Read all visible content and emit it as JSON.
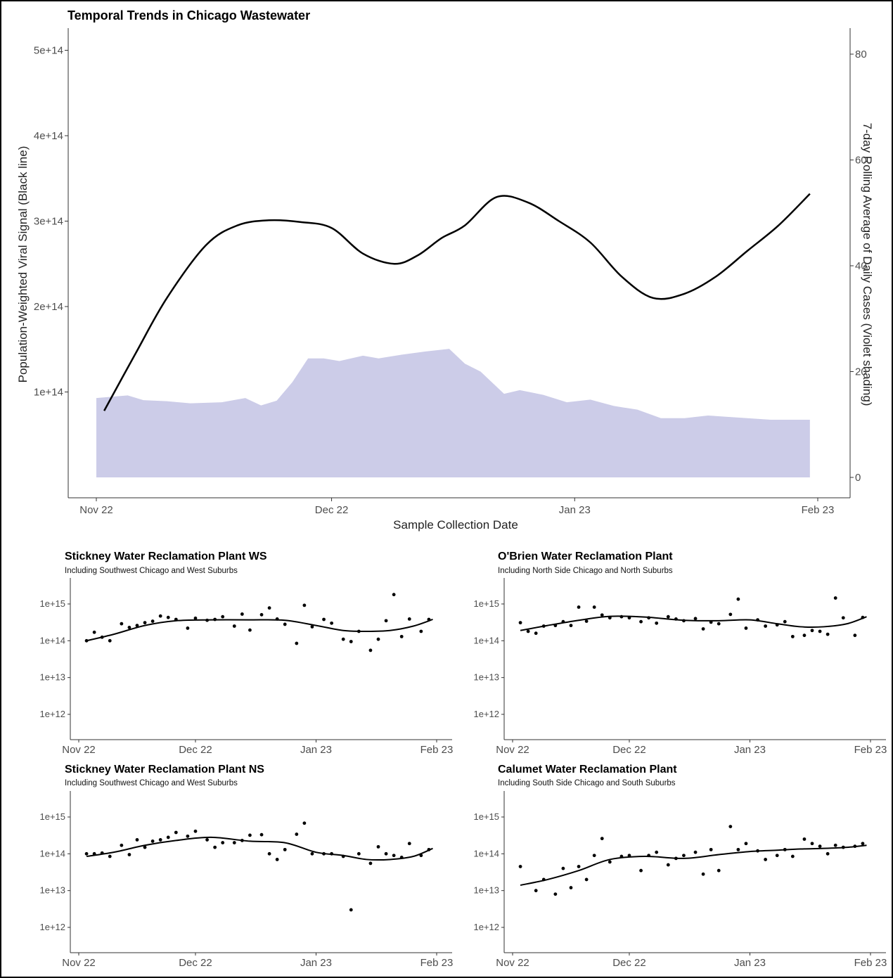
{
  "chart_data": [
    {
      "type": "line+area",
      "title": "Temporal Trends in Chicago Wastewater",
      "xlabel": "Sample Collection Date",
      "ylabel": "Population-Weighted Viral Signal (Black line)",
      "ylabel_right": "7-day Rolling Average of Daily Cases (Violet shading)",
      "x_ticks": [
        "Nov 22",
        "Dec 22",
        "Jan 23",
        "Feb 23"
      ],
      "y_ticks": [
        "1e+14",
        "2e+14",
        "3e+14",
        "4e+14",
        "5e+14"
      ],
      "y_right_ticks": [
        "0",
        "20",
        "40",
        "60",
        "80"
      ],
      "ylim": [
        0,
        510000000000000.0
      ],
      "ylim_right": [
        0,
        81
      ],
      "line_color": "#000000",
      "area_color": "#cccce8",
      "series": [
        {
          "type": "line",
          "x": [
            "2022-11-02",
            "2022-11-06",
            "2022-11-10",
            "2022-11-15",
            "2022-11-19",
            "2022-11-23",
            "2022-11-27",
            "2022-12-01",
            "2022-12-05",
            "2022-12-09",
            "2022-12-12",
            "2022-12-15",
            "2022-12-18",
            "2022-12-22",
            "2022-12-26",
            "2022-12-30",
            "2023-01-03",
            "2023-01-07",
            "2023-01-11",
            "2023-01-15",
            "2023-01-19",
            "2023-01-23",
            "2023-01-27",
            "2023-01-31"
          ],
          "values": [
            78000000000000.0,
            145000000000000.0,
            210000000000000.0,
            272000000000000.0,
            295000000000000.0,
            301000000000000.0,
            299000000000000.0,
            292000000000000.0,
            262000000000000.0,
            250000000000000.0,
            260000000000000.0,
            280000000000000.0,
            295000000000000.0,
            328000000000000.0,
            322000000000000.0,
            300000000000000.0,
            275000000000000.0,
            235000000000000.0,
            210000000000000.0,
            215000000000000.0,
            235000000000000.0,
            265000000000000.0,
            295000000000000.0,
            332000000000000.0
          ]
        },
        {
          "type": "area",
          "x": [
            "2022-11-01",
            "2022-11-05",
            "2022-11-07",
            "2022-11-10",
            "2022-11-13",
            "2022-11-17",
            "2022-11-20",
            "2022-11-22",
            "2022-11-24",
            "2022-11-26",
            "2022-11-28",
            "2022-11-30",
            "2022-12-02",
            "2022-12-05",
            "2022-12-07",
            "2022-12-10",
            "2022-12-13",
            "2022-12-16",
            "2022-12-18",
            "2022-12-20",
            "2022-12-23",
            "2022-12-25",
            "2022-12-28",
            "2022-12-31",
            "2023-01-03",
            "2023-01-06",
            "2023-01-09",
            "2023-01-12",
            "2023-01-15",
            "2023-01-18",
            "2023-01-22",
            "2023-01-26",
            "2023-01-31"
          ],
          "values": [
            15,
            15.5,
            14.6,
            14.4,
            14,
            14.2,
            15,
            13.6,
            14.5,
            18,
            22.5,
            22.5,
            22,
            23,
            22.5,
            23.2,
            23.8,
            24.3,
            21.5,
            20,
            15.8,
            16.5,
            15.6,
            14.2,
            14.7,
            13.5,
            12.8,
            11.2,
            11.2,
            11.7,
            11.3,
            10.9,
            10.9
          ]
        }
      ]
    },
    {
      "type": "scatter+line",
      "title": "Stickney Water Reclamation Plant WS",
      "subtitle": "Including Southwest Chicago and West Suburbs",
      "x_ticks": [
        "Nov 22",
        "Dec 22",
        "Jan 23",
        "Feb 23"
      ],
      "y_ticks": [
        "1e+12",
        "1e+13",
        "1e+14",
        "1e+15"
      ],
      "yscale": "log",
      "points": {
        "x": [
          "2022-11-03",
          "2022-11-05",
          "2022-11-07",
          "2022-11-09",
          "2022-11-12",
          "2022-11-14",
          "2022-11-16",
          "2022-11-18",
          "2022-11-20",
          "2022-11-22",
          "2022-11-24",
          "2022-11-26",
          "2022-11-29",
          "2022-12-01",
          "2022-12-04",
          "2022-12-06",
          "2022-12-08",
          "2022-12-11",
          "2022-12-13",
          "2022-12-15",
          "2022-12-18",
          "2022-12-20",
          "2022-12-22",
          "2022-12-24",
          "2022-12-27",
          "2022-12-29",
          "2022-12-31",
          "2023-01-03",
          "2023-01-05",
          "2023-01-08",
          "2023-01-10",
          "2023-01-12",
          "2023-01-15",
          "2023-01-17",
          "2023-01-19",
          "2023-01-21",
          "2023-01-23",
          "2023-01-25",
          "2023-01-28",
          "2023-01-30"
        ],
        "values": [
          100000000000000.0,
          170000000000000.0,
          125000000000000.0,
          100000000000000.0,
          290000000000000.0,
          230000000000000.0,
          260000000000000.0,
          310000000000000.0,
          340000000000000.0,
          470000000000000.0,
          430000000000000.0,
          380000000000000.0,
          220000000000000.0,
          410000000000000.0,
          360000000000000.0,
          380000000000000.0,
          450000000000000.0,
          250000000000000.0,
          530000000000000.0,
          195000000000000.0,
          510000000000000.0,
          780000000000000.0,
          390000000000000.0,
          280000000000000.0,
          85000000000000.0,
          920000000000000.0,
          240000000000000.0,
          380000000000000.0,
          300000000000000.0,
          110000000000000.0,
          95000000000000.0,
          180000000000000.0,
          55000000000000.0,
          110000000000000.0,
          350000000000000.0,
          1800000000000000.0,
          130000000000000.0,
          390000000000000.0,
          180000000000000.0,
          380000000000000.0
        ]
      },
      "smooth": {
        "x": [
          "2022-11-03",
          "2022-11-10",
          "2022-11-18",
          "2022-11-26",
          "2022-12-05",
          "2022-12-15",
          "2022-12-24",
          "2023-01-01",
          "2023-01-08",
          "2023-01-14",
          "2023-01-20",
          "2023-01-26",
          "2023-01-31"
        ],
        "values": [
          100000000000000.0,
          150000000000000.0,
          260000000000000.0,
          350000000000000.0,
          370000000000000.0,
          370000000000000.0,
          360000000000000.0,
          260000000000000.0,
          190000000000000.0,
          180000000000000.0,
          190000000000000.0,
          250000000000000.0,
          380000000000000.0
        ]
      }
    },
    {
      "type": "scatter+line",
      "title": "O'Brien Water Reclamation Plant",
      "subtitle": "Including North Side Chicago and North Suburbs",
      "x_ticks": [
        "Nov 22",
        "Dec 22",
        "Jan 23",
        "Feb 23"
      ],
      "y_ticks": [
        "1e+12",
        "1e+13",
        "1e+14",
        "1e+15"
      ],
      "yscale": "log",
      "points": {
        "x": [
          "2022-11-03",
          "2022-11-05",
          "2022-11-07",
          "2022-11-09",
          "2022-11-12",
          "2022-11-14",
          "2022-11-16",
          "2022-11-18",
          "2022-11-20",
          "2022-11-22",
          "2022-11-24",
          "2022-11-26",
          "2022-11-29",
          "2022-12-01",
          "2022-12-04",
          "2022-12-06",
          "2022-12-08",
          "2022-12-11",
          "2022-12-13",
          "2022-12-15",
          "2022-12-18",
          "2022-12-20",
          "2022-12-22",
          "2022-12-24",
          "2022-12-27",
          "2022-12-29",
          "2022-12-31",
          "2023-01-03",
          "2023-01-05",
          "2023-01-08",
          "2023-01-10",
          "2023-01-12",
          "2023-01-15",
          "2023-01-17",
          "2023-01-19",
          "2023-01-21",
          "2023-01-23",
          "2023-01-25",
          "2023-01-28",
          "2023-01-30"
        ],
        "values": [
          310000000000000.0,
          180000000000000.0,
          160000000000000.0,
          250000000000000.0,
          260000000000000.0,
          330000000000000.0,
          260000000000000.0,
          820000000000000.0,
          340000000000000.0,
          820000000000000.0,
          500000000000000.0,
          420000000000000.0,
          450000000000000.0,
          420000000000000.0,
          330000000000000.0,
          420000000000000.0,
          300000000000000.0,
          450000000000000.0,
          390000000000000.0,
          350000000000000.0,
          400000000000000.0,
          210000000000000.0,
          320000000000000.0,
          290000000000000.0,
          520000000000000.0,
          1350000000000000.0,
          220000000000000.0,
          370000000000000.0,
          250000000000000.0,
          270000000000000.0,
          330000000000000.0,
          130000000000000.0,
          140000000000000.0,
          190000000000000.0,
          180000000000000.0,
          150000000000000.0,
          1450000000000000.0,
          420000000000000.0,
          140000000000000.0,
          430000000000000.0
        ]
      },
      "smooth": {
        "x": [
          "2022-11-03",
          "2022-11-10",
          "2022-11-18",
          "2022-11-26",
          "2022-12-05",
          "2022-12-15",
          "2022-12-24",
          "2023-01-01",
          "2023-01-08",
          "2023-01-14",
          "2023-01-20",
          "2023-01-26",
          "2023-01-31"
        ],
        "values": [
          190000000000000.0,
          260000000000000.0,
          360000000000000.0,
          460000000000000.0,
          440000000000000.0,
          360000000000000.0,
          350000000000000.0,
          370000000000000.0,
          290000000000000.0,
          240000000000000.0,
          240000000000000.0,
          290000000000000.0,
          450000000000000.0
        ]
      }
    },
    {
      "type": "scatter+line",
      "title": "Stickney Water Reclamation Plant NS",
      "subtitle": "Including Southwest Chicago and West Suburbs",
      "x_ticks": [
        "Nov 22",
        "Dec 22",
        "Jan 23",
        "Feb 23"
      ],
      "y_ticks": [
        "1e+12",
        "1e+13",
        "1e+14",
        "1e+15"
      ],
      "yscale": "log",
      "points": {
        "x": [
          "2022-11-03",
          "2022-11-05",
          "2022-11-07",
          "2022-11-09",
          "2022-11-12",
          "2022-11-14",
          "2022-11-16",
          "2022-11-18",
          "2022-11-20",
          "2022-11-22",
          "2022-11-24",
          "2022-11-26",
          "2022-11-29",
          "2022-12-01",
          "2022-12-04",
          "2022-12-06",
          "2022-12-08",
          "2022-12-11",
          "2022-12-13",
          "2022-12-15",
          "2022-12-18",
          "2022-12-20",
          "2022-12-22",
          "2022-12-24",
          "2022-12-27",
          "2022-12-29",
          "2022-12-31",
          "2023-01-03",
          "2023-01-05",
          "2023-01-08",
          "2023-01-10",
          "2023-01-12",
          "2023-01-15",
          "2023-01-17",
          "2023-01-19",
          "2023-01-21",
          "2023-01-23",
          "2023-01-25",
          "2023-01-28",
          "2023-01-30"
        ],
        "values": [
          100000000000000.0,
          100000000000000.0,
          105000000000000.0,
          85000000000000.0,
          170000000000000.0,
          95000000000000.0,
          240000000000000.0,
          150000000000000.0,
          220000000000000.0,
          240000000000000.0,
          280000000000000.0,
          380000000000000.0,
          300000000000000.0,
          410000000000000.0,
          240000000000000.0,
          150000000000000.0,
          200000000000000.0,
          200000000000000.0,
          230000000000000.0,
          320000000000000.0,
          330000000000000.0,
          100000000000000.0,
          70000000000000.0,
          130000000000000.0,
          340000000000000.0,
          680000000000000.0,
          100000000000000.0,
          100000000000000.0,
          100000000000000.0,
          85000000000000.0,
          3000000000000.0,
          100000000000000.0,
          55000000000000.0,
          155000000000000.0,
          100000000000000.0,
          90000000000000.0,
          80000000000000.0,
          190000000000000.0,
          90000000000000.0,
          130000000000000.0
        ]
      },
      "smooth": {
        "x": [
          "2022-11-03",
          "2022-11-10",
          "2022-11-18",
          "2022-11-26",
          "2022-12-05",
          "2022-12-15",
          "2022-12-24",
          "2023-01-01",
          "2023-01-08",
          "2023-01-14",
          "2023-01-20",
          "2023-01-26",
          "2023-01-31"
        ],
        "values": [
          85000000000000.0,
          110000000000000.0,
          170000000000000.0,
          230000000000000.0,
          280000000000000.0,
          220000000000000.0,
          200000000000000.0,
          110000000000000.0,
          90000000000000.0,
          70000000000000.0,
          70000000000000.0,
          85000000000000.0,
          140000000000000.0
        ]
      }
    },
    {
      "type": "scatter+line",
      "title": "Calumet Water Reclamation Plant",
      "subtitle": "Including South Side Chicago and South Suburbs",
      "x_ticks": [
        "Nov 22",
        "Dec 22",
        "Jan 23",
        "Feb 23"
      ],
      "y_ticks": [
        "1e+12",
        "1e+13",
        "1e+14",
        "1e+15"
      ],
      "yscale": "log",
      "points": {
        "x": [
          "2022-11-03",
          "2022-11-05",
          "2022-11-07",
          "2022-11-09",
          "2022-11-12",
          "2022-11-14",
          "2022-11-16",
          "2022-11-18",
          "2022-11-20",
          "2022-11-22",
          "2022-11-24",
          "2022-11-26",
          "2022-11-29",
          "2022-12-01",
          "2022-12-04",
          "2022-12-06",
          "2022-12-08",
          "2022-12-11",
          "2022-12-13",
          "2022-12-15",
          "2022-12-18",
          "2022-12-20",
          "2022-12-22",
          "2022-12-24",
          "2022-12-27",
          "2022-12-29",
          "2022-12-31",
          "2023-01-03",
          "2023-01-05",
          "2023-01-08",
          "2023-01-10",
          "2023-01-12",
          "2023-01-15",
          "2023-01-17",
          "2023-01-19",
          "2023-01-21",
          "2023-01-23",
          "2023-01-25",
          "2023-01-28",
          "2023-01-30"
        ],
        "values": [
          45000000000000.0,
          100000000000.0,
          10000000000000.0,
          20000000000000.0,
          8000000000000.0,
          40000000000000.0,
          12000000000000.0,
          45000000000000.0,
          20000000000000.0,
          90000000000000.0,
          260000000000000.0,
          60000000000000.0,
          85000000000000.0,
          90000000000000.0,
          35000000000000.0,
          90000000000000.0,
          110000000000000.0,
          50000000000000.0,
          75000000000000.0,
          90000000000000.0,
          110000000000000.0,
          28000000000000.0,
          130000000000000.0,
          35000000000000.0,
          550000000000000.0,
          130000000000000.0,
          190000000000000.0,
          120000000000000.0,
          70000000000000.0,
          90000000000000.0,
          130000000000000.0,
          85000000000000.0,
          250000000000000.0,
          190000000000000.0,
          160000000000000.0,
          100000000000000.0,
          170000000000000.0,
          150000000000000.0,
          160000000000000.0,
          190000000000000.0
        ]
      },
      "smooth": {
        "x": [
          "2022-11-03",
          "2022-11-10",
          "2022-11-18",
          "2022-11-26",
          "2022-12-05",
          "2022-12-15",
          "2022-12-24",
          "2023-01-01",
          "2023-01-08",
          "2023-01-14",
          "2023-01-20",
          "2023-01-26",
          "2023-01-31"
        ],
        "values": [
          14000000000000.0,
          20000000000000.0,
          35000000000000.0,
          70000000000000.0,
          85000000000000.0,
          75000000000000.0,
          95000000000000.0,
          115000000000000.0,
          125000000000000.0,
          135000000000000.0,
          140000000000000.0,
          150000000000000.0,
          170000000000000.0
        ]
      }
    }
  ]
}
